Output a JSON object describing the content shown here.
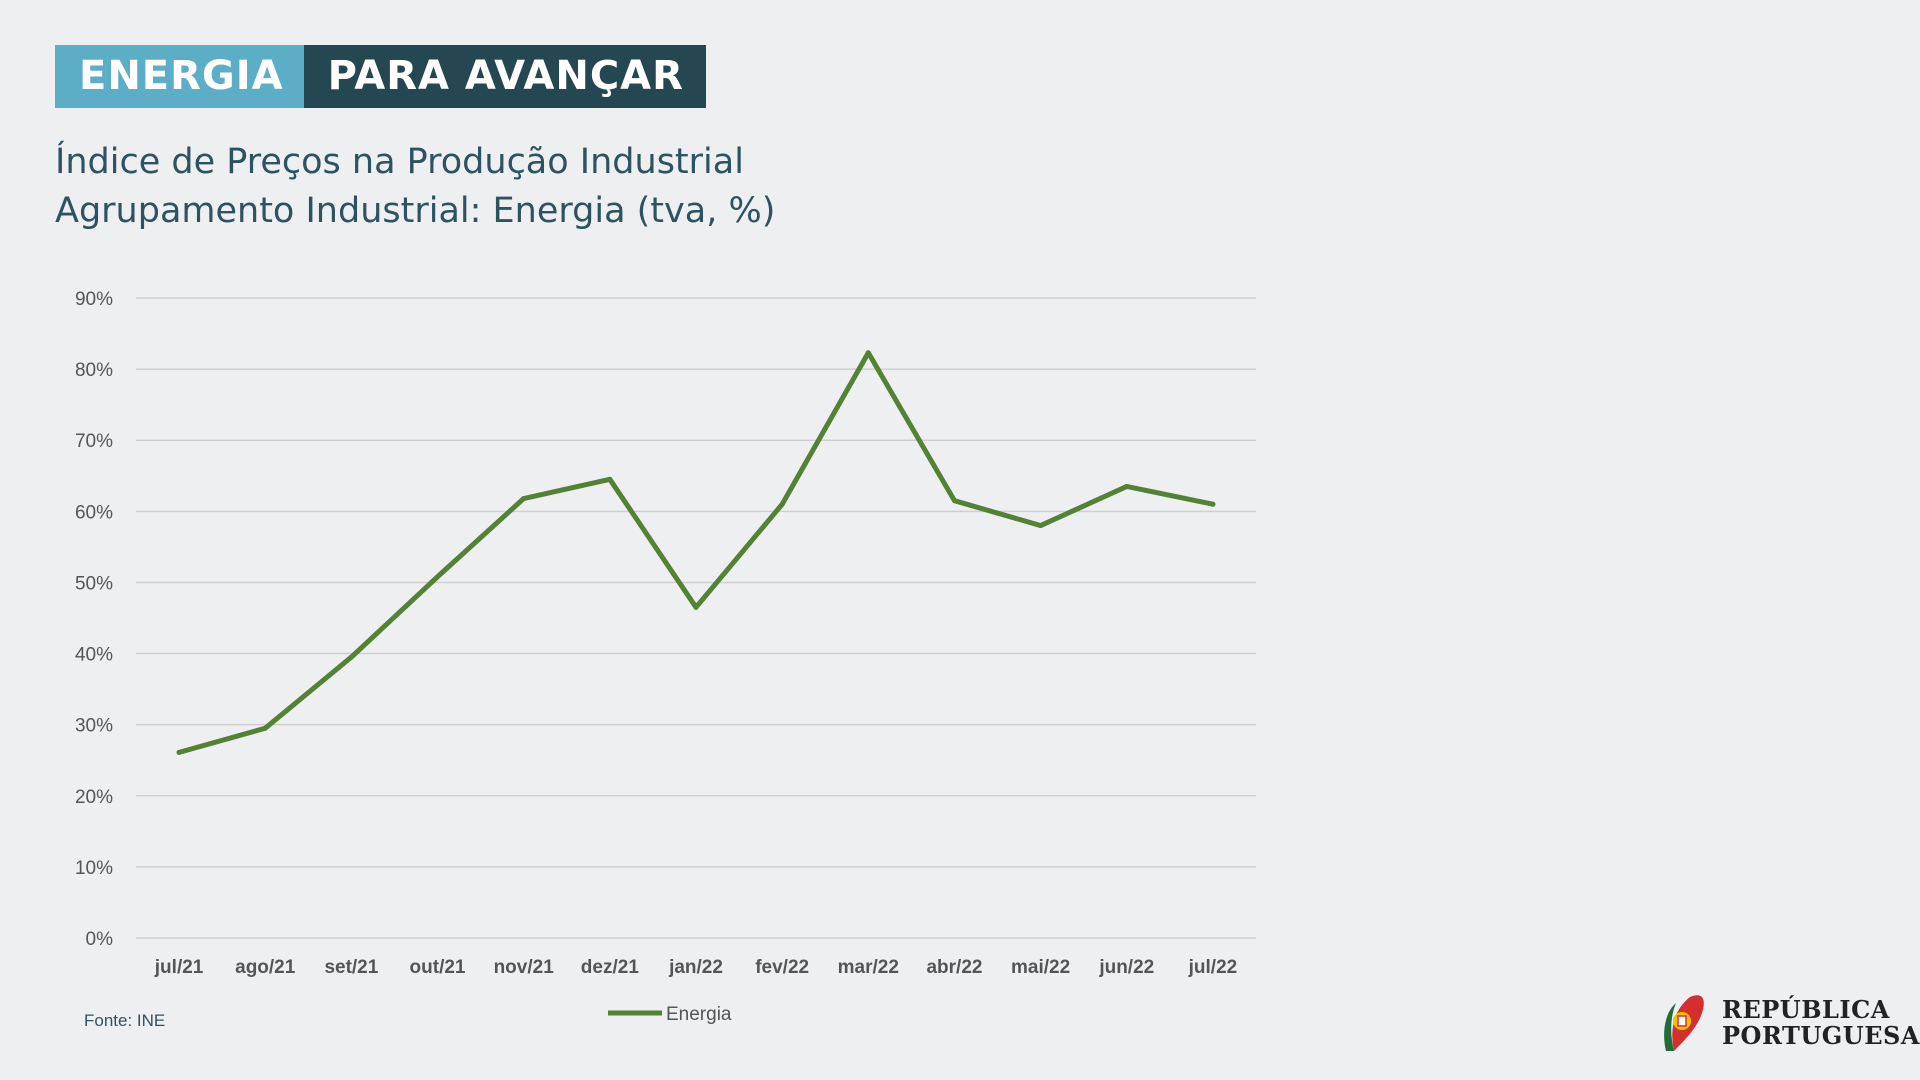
{
  "banner": {
    "part1": "ENERGIA",
    "part2": "PARA AVANÇAR"
  },
  "source": "Fonte: INE",
  "logo": {
    "line1": "REPÚBLICA",
    "line2": "PORTUGUESA"
  },
  "colors": {
    "line": "#548235",
    "banner_light": "#5baec6",
    "banner_dark": "#244752",
    "title": "#2e5360"
  },
  "chart_data": {
    "type": "line",
    "title": "Índice de Preços na Produção Industrial",
    "subtitle": "Agrupamento Industrial: Energia (tva, %)",
    "categories": [
      "jul/21",
      "ago/21",
      "set/21",
      "out/21",
      "nov/21",
      "dez/21",
      "jan/22",
      "fev/22",
      "mar/22",
      "abr/22",
      "mai/22",
      "jun/22",
      "jul/22"
    ],
    "series": [
      {
        "name": "Energia",
        "values": [
          26.1,
          29.5,
          39.5,
          50.8,
          61.8,
          64.5,
          46.5,
          61.0,
          82.3,
          61.5,
          58.0,
          63.5,
          61.0
        ]
      }
    ],
    "yticks": [
      "0%",
      "10%",
      "20%",
      "30%",
      "40%",
      "50%",
      "60%",
      "70%",
      "80%",
      "90%"
    ],
    "ylim": [
      0,
      90
    ],
    "grid": true,
    "legend": "bottom"
  }
}
